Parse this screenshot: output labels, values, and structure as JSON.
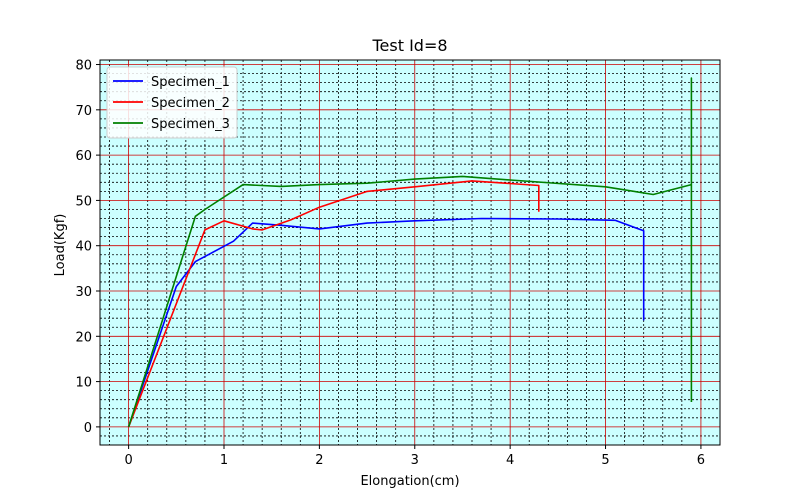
{
  "chart_data": {
    "type": "line",
    "title": "Test Id=8",
    "xlabel": "Elongation(cm)",
    "ylabel": "Load(Kgf)",
    "xlim": [
      -0.3,
      6.2
    ],
    "ylim": [
      -4,
      81
    ],
    "xticks": [
      0,
      1,
      2,
      3,
      4,
      5,
      6
    ],
    "yticks": [
      0,
      10,
      20,
      30,
      40,
      50,
      60,
      70,
      80
    ],
    "grid": true,
    "major_grid_color": "#cc0000",
    "minor_grid_color": "#000000",
    "background_color": "#ccffff",
    "legend_position": "top-left",
    "series": [
      {
        "name": "Specimen_1",
        "color": "#0000ff",
        "x": [
          0,
          0.5,
          0.7,
          1.1,
          1.3,
          1.6,
          2.0,
          2.5,
          3.0,
          3.7,
          4.5,
          5.1,
          5.4,
          5.4
        ],
        "y": [
          0,
          31,
          36.5,
          41,
          45,
          44.5,
          43.7,
          45,
          45.5,
          46,
          45.9,
          45.6,
          43.3,
          23.5
        ]
      },
      {
        "name": "Specimen_2",
        "color": "#ff0000",
        "x": [
          0,
          0.8,
          1.0,
          1.3,
          1.4,
          1.7,
          2.0,
          2.5,
          3.0,
          3.6,
          4.3,
          4.3
        ],
        "y": [
          0,
          43.5,
          45.5,
          43.7,
          43.5,
          45.7,
          48.5,
          52,
          53,
          54.3,
          53.3,
          47.5
        ]
      },
      {
        "name": "Specimen_3",
        "color": "#008000",
        "x": [
          0,
          0.7,
          0.8,
          1.2,
          1.6,
          2.0,
          2.5,
          3.0,
          3.5,
          4.0,
          5.0,
          5.5,
          5.9,
          5.9,
          5.9
        ],
        "y": [
          0,
          46.5,
          48,
          53.5,
          53.1,
          53.5,
          53.8,
          54.7,
          55.3,
          54.5,
          53,
          51.3,
          53.5,
          77,
          5.5
        ]
      }
    ]
  }
}
